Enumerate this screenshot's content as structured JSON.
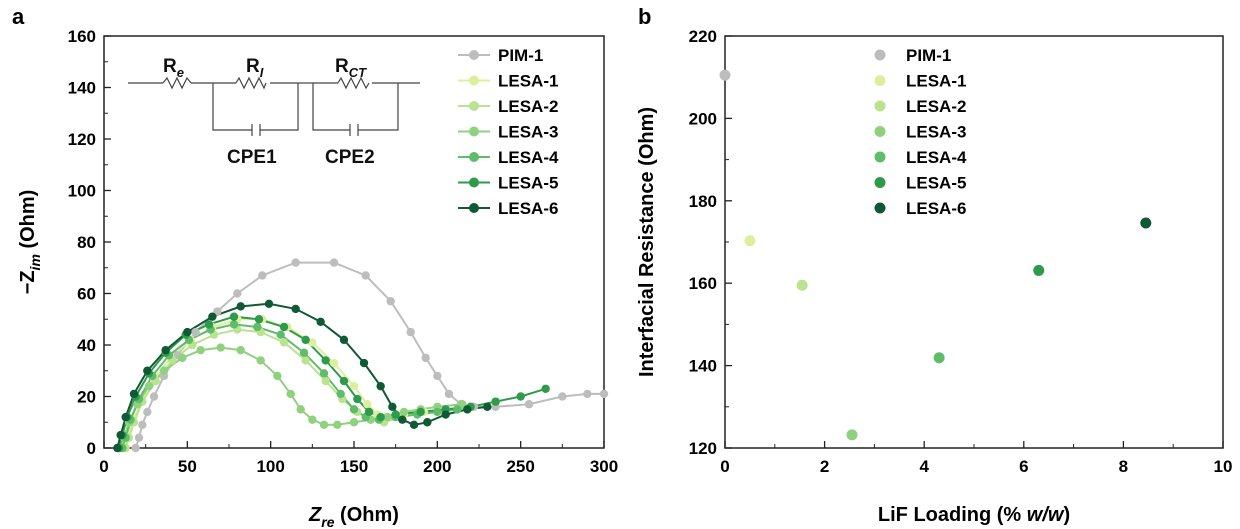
{
  "chart_data": [
    {
      "panel_label": "a",
      "type": "scatter",
      "xlabel": "Z",
      "xlabel_sub": "re",
      "xlabel_unit": " (Ohm)",
      "ylabel": "−Z",
      "ylabel_sub": "im",
      "ylabel_unit": " (Ohm)",
      "xlim": [
        0,
        300
      ],
      "ylim": [
        0,
        160
      ],
      "xticks": [
        0,
        50,
        100,
        150,
        200,
        250,
        300
      ],
      "yticks": [
        0,
        20,
        40,
        60,
        80,
        100,
        120,
        140,
        160
      ],
      "legend_position": "top-right",
      "inset_circuit": {
        "labels": [
          "R",
          "R",
          "R",
          "CPE1",
          "CPE2"
        ],
        "subscripts": [
          "e",
          "I",
          "CT"
        ]
      },
      "series": [
        {
          "name": "PIM-1",
          "color": "#bdbdbd",
          "points": [
            [
              19,
              0
            ],
            [
              21,
              4
            ],
            [
              23,
              9
            ],
            [
              26,
              14
            ],
            [
              30,
              20
            ],
            [
              36,
              28
            ],
            [
              44,
              36
            ],
            [
              55,
              45
            ],
            [
              68,
              53
            ],
            [
              80,
              60
            ],
            [
              95,
              67
            ],
            [
              115,
              72
            ],
            [
              138,
              72
            ],
            [
              157,
              67
            ],
            [
              172,
              57
            ],
            [
              184,
              45
            ],
            [
              193,
              35
            ],
            [
              200,
              28
            ],
            [
              207,
              21
            ],
            [
              214,
              17
            ],
            [
              222,
              16
            ],
            [
              235,
              16
            ],
            [
              255,
              17
            ],
            [
              275,
              20
            ],
            [
              290,
              21
            ],
            [
              300,
              21
            ]
          ]
        },
        {
          "name": "LESA-1",
          "color": "#dcef9c",
          "points": [
            [
              12,
              0
            ],
            [
              14,
              4
            ],
            [
              17,
              10
            ],
            [
              22,
              18
            ],
            [
              30,
              27
            ],
            [
              40,
              35
            ],
            [
              52,
              42
            ],
            [
              65,
              47
            ],
            [
              80,
              50
            ],
            [
              95,
              50
            ],
            [
              110,
              47
            ],
            [
              125,
              41
            ],
            [
              138,
              33
            ],
            [
              150,
              24
            ],
            [
              158,
              17
            ],
            [
              164,
              13
            ],
            [
              170,
              12
            ],
            [
              180,
              13
            ],
            [
              192,
              14
            ],
            [
              205,
              15
            ],
            [
              220,
              16
            ],
            [
              235,
              18
            ]
          ]
        },
        {
          "name": "LESA-2",
          "color": "#b9e38f",
          "points": [
            [
              13,
              0
            ],
            [
              15,
              4
            ],
            [
              18,
              10
            ],
            [
              23,
              18
            ],
            [
              31,
              26
            ],
            [
              41,
              34
            ],
            [
              53,
              40
            ],
            [
              66,
              44
            ],
            [
              80,
              46
            ],
            [
              94,
              45
            ],
            [
              108,
              41
            ],
            [
              121,
              34
            ],
            [
              133,
              26
            ],
            [
              143,
              19
            ],
            [
              152,
              14
            ],
            [
              160,
              11
            ],
            [
              168,
              10
            ],
            [
              178,
              12
            ],
            [
              190,
              14
            ],
            [
              205,
              15
            ],
            [
              220,
              16
            ]
          ]
        },
        {
          "name": "LESA-3",
          "color": "#8fd17f",
          "points": [
            [
              10,
              0
            ],
            [
              12,
              4
            ],
            [
              15,
              10
            ],
            [
              20,
              17
            ],
            [
              27,
              24
            ],
            [
              36,
              30
            ],
            [
              47,
              35
            ],
            [
              58,
              38
            ],
            [
              70,
              39
            ],
            [
              82,
              38
            ],
            [
              94,
              34
            ],
            [
              104,
              28
            ],
            [
              112,
              21
            ],
            [
              118,
              15
            ],
            [
              125,
              11
            ],
            [
              132,
              9
            ],
            [
              140,
              9
            ],
            [
              150,
              10
            ],
            [
              160,
              11
            ],
            [
              170,
              12
            ],
            [
              180,
              14
            ],
            [
              190,
              15
            ],
            [
              200,
              16
            ],
            [
              215,
              17
            ]
          ]
        },
        {
          "name": "LESA-4",
          "color": "#5fbc6a",
          "points": [
            [
              11,
              0
            ],
            [
              13,
              4
            ],
            [
              16,
              11
            ],
            [
              21,
              19
            ],
            [
              29,
              28
            ],
            [
              39,
              36
            ],
            [
              51,
              42
            ],
            [
              64,
              46
            ],
            [
              78,
              48
            ],
            [
              92,
              47
            ],
            [
              106,
              44
            ],
            [
              120,
              37
            ],
            [
              132,
              29
            ],
            [
              142,
              21
            ],
            [
              150,
              15
            ],
            [
              157,
              12
            ],
            [
              165,
              11
            ],
            [
              175,
              12
            ],
            [
              188,
              13
            ],
            [
              200,
              14
            ],
            [
              212,
              15
            ]
          ]
        },
        {
          "name": "LESA-5",
          "color": "#2e9a4c",
          "points": [
            [
              9,
              0
            ],
            [
              11,
              5
            ],
            [
              14,
              12
            ],
            [
              19,
              20
            ],
            [
              27,
              29
            ],
            [
              37,
              37
            ],
            [
              49,
              44
            ],
            [
              63,
              48
            ],
            [
              78,
              51
            ],
            [
              93,
              50
            ],
            [
              108,
              47
            ],
            [
              121,
              42
            ],
            [
              133,
              34
            ],
            [
              144,
              26
            ],
            [
              152,
              19
            ],
            [
              159,
              14
            ],
            [
              166,
              12
            ],
            [
              175,
              13
            ],
            [
              190,
              14
            ],
            [
              205,
              15
            ],
            [
              220,
              16
            ],
            [
              235,
              18
            ],
            [
              250,
              20
            ],
            [
              265,
              23
            ]
          ]
        },
        {
          "name": "LESA-6",
          "color": "#0f5a35",
          "points": [
            [
              8,
              0
            ],
            [
              10,
              5
            ],
            [
              13,
              12
            ],
            [
              18,
              21
            ],
            [
              26,
              30
            ],
            [
              37,
              38
            ],
            [
              50,
              45
            ],
            [
              65,
              51
            ],
            [
              82,
              55
            ],
            [
              99,
              56
            ],
            [
              115,
              54
            ],
            [
              130,
              49
            ],
            [
              144,
              42
            ],
            [
              156,
              33
            ],
            [
              166,
              24
            ],
            [
              173,
              16
            ],
            [
              179,
              11
            ],
            [
              186,
              9
            ],
            [
              194,
              10
            ],
            [
              205,
              13
            ],
            [
              218,
              15
            ],
            [
              230,
              16
            ]
          ]
        }
      ]
    },
    {
      "panel_label": "b",
      "type": "scatter",
      "xlabel": "LiF Loading (% ",
      "xlabel_italic": "w/w",
      "xlabel_tail": ")",
      "ylabel": "Interfacial Resistance (Ohm)",
      "xlim": [
        0,
        10
      ],
      "ylim": [
        120,
        220
      ],
      "xticks": [
        0,
        2,
        4,
        6,
        8,
        10
      ],
      "yticks": [
        120,
        140,
        160,
        180,
        200,
        220
      ],
      "legend_position": "top-left",
      "series": [
        {
          "name": "PIM-1",
          "color": "#bdbdbd",
          "x": 0.0,
          "y": 210.5
        },
        {
          "name": "LESA-1",
          "color": "#dcef9c",
          "x": 0.5,
          "y": 170.3
        },
        {
          "name": "LESA-2",
          "color": "#b9e38f",
          "x": 1.55,
          "y": 159.5
        },
        {
          "name": "LESA-3",
          "color": "#8fd17f",
          "x": 2.55,
          "y": 123.2
        },
        {
          "name": "LESA-4",
          "color": "#5fbc6a",
          "x": 4.3,
          "y": 141.9
        },
        {
          "name": "LESA-5",
          "color": "#2e9a4c",
          "x": 6.3,
          "y": 163.1
        },
        {
          "name": "LESA-6",
          "color": "#0f5a35",
          "x": 8.45,
          "y": 174.6
        }
      ]
    }
  ]
}
